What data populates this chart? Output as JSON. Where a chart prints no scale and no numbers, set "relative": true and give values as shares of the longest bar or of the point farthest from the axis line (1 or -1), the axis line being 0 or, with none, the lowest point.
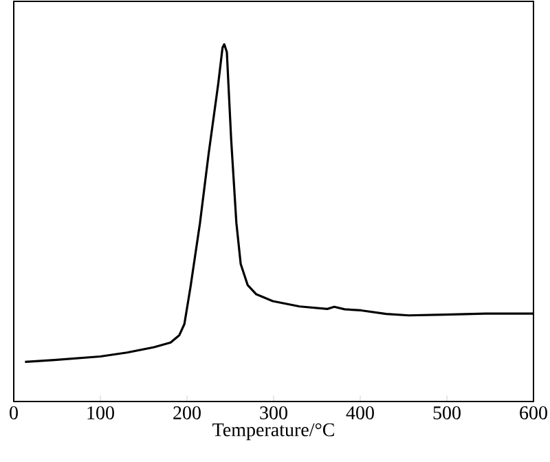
{
  "chart_data": {
    "type": "line",
    "xlabel": "Temperature/°C",
    "relative": true,
    "xlim": [
      0,
      600
    ],
    "xticks": [
      0,
      100,
      200,
      300,
      400,
      500,
      600
    ],
    "grid": false,
    "marker": "none",
    "line_style": "solid",
    "series": [
      {
        "color": "#000000",
        "x": [
          13,
          47,
          100,
          131,
          162,
          181,
          191,
          197,
          204,
          215,
          225,
          236,
          241,
          243,
          246,
          251,
          257,
          262,
          270,
          280,
          299,
          330,
          362,
          370,
          382,
          401,
          430,
          456,
          498,
          545,
          600
        ],
        "values": [
          0.111,
          0.116,
          0.126,
          0.137,
          0.152,
          0.165,
          0.185,
          0.217,
          0.32,
          0.5,
          0.694,
          0.888,
          0.99,
          1,
          0.978,
          0.733,
          0.5,
          0.385,
          0.326,
          0.3,
          0.281,
          0.266,
          0.259,
          0.265,
          0.258,
          0.255,
          0.245,
          0.241,
          0.243,
          0.246,
          0.246
        ]
      }
    ]
  }
}
